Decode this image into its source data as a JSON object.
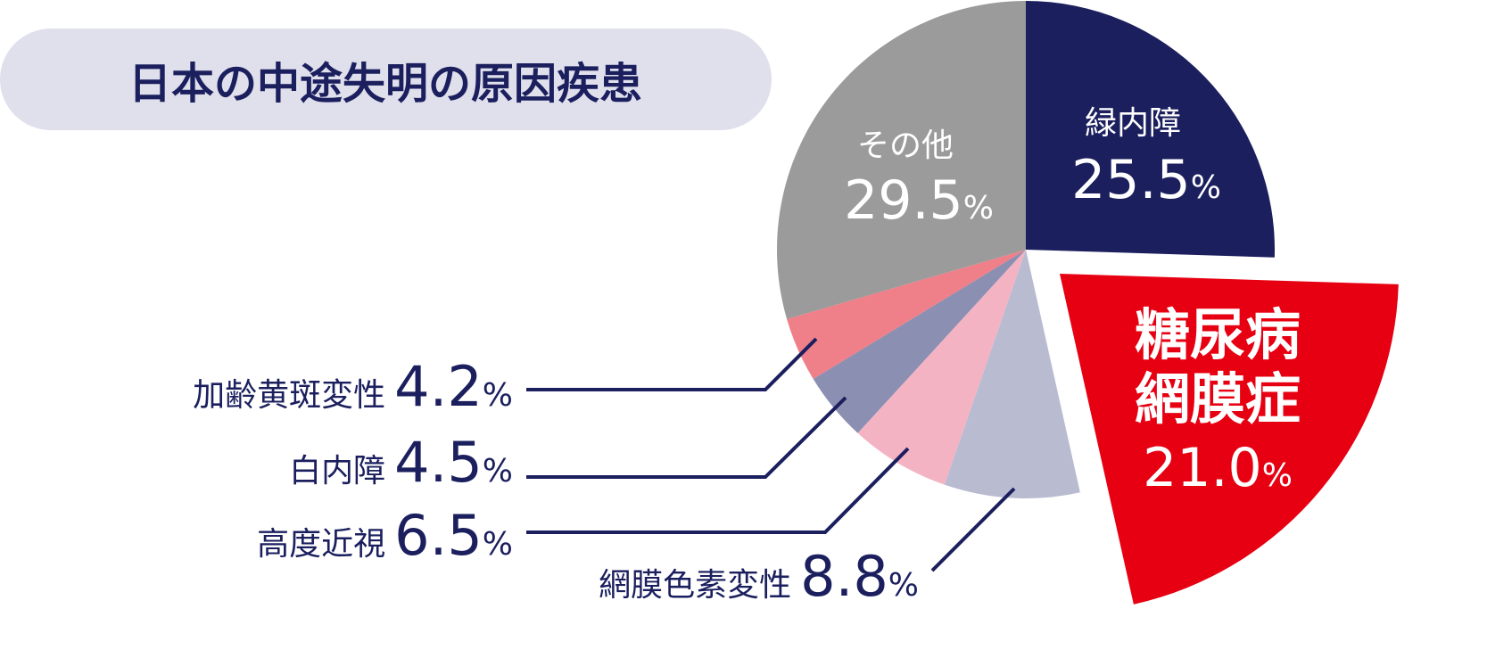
{
  "chart_data": {
    "type": "pie",
    "title": "日本の中途失明の原因疾患",
    "categories": [
      "緑内障",
      "糖尿病網膜症",
      "網膜色素変性",
      "高度近視",
      "白内障",
      "加齢黄斑変性",
      "その他"
    ],
    "values": [
      25.5,
      21.0,
      8.8,
      6.5,
      4.5,
      4.2,
      29.5
    ],
    "value_labels": [
      "25.5",
      "21.0",
      "8.8",
      "6.5",
      "4.5",
      "4.2",
      "29.5"
    ],
    "unit": "%",
    "colors": [
      "#1b1f5e",
      "#e60012",
      "#b9bbd1",
      "#f4b3c3",
      "#8b8fb1",
      "#ef7f88",
      "#9b9b9b"
    ]
  }
}
